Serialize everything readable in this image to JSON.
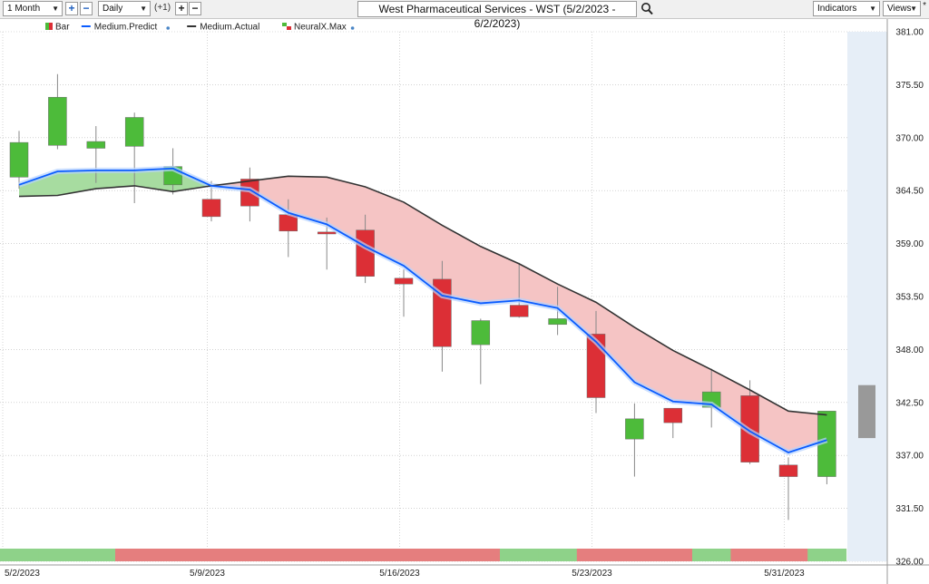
{
  "toolbar": {
    "period": "1 Month",
    "interval": "Daily",
    "offset": "(+1)",
    "title": "West Pharmaceutical Services - WST (5/2/2023 - 6/2/2023)",
    "indicators": "Indicators",
    "views": "Views",
    "star": "*"
  },
  "colors": {
    "up": "#4dbb3a",
    "down": "#dc2f36",
    "predict": "#0a5cff",
    "actual": "#333333",
    "fill_green": "#a7dca0",
    "fill_red": "#f5c4c4",
    "strip_green": "#8ed289",
    "strip_red": "#e57e7e",
    "forecast_zone": "#e6eef7",
    "forecast_bar": "#999999"
  },
  "chart_data": {
    "type": "candlestick",
    "legend": [
      "Bar",
      "Medium.Predict",
      "Medium.Actual",
      "NeuralX.Max"
    ],
    "x_labels": [
      "5/2/2023",
      "5/9/2023",
      "5/16/2023",
      "5/23/2023",
      "5/31/2023"
    ],
    "x_label_index": [
      0,
      5,
      10,
      15,
      20
    ],
    "y_ticks": [
      "381.00",
      "375.50",
      "370.00",
      "364.50",
      "359.00",
      "353.50",
      "348.00",
      "342.50",
      "337.00",
      "331.50",
      "326.00"
    ],
    "ylim": [
      326,
      381
    ],
    "candles": [
      {
        "o": 365.9,
        "h": 370.7,
        "l": 364.7,
        "c": 369.5
      },
      {
        "o": 369.2,
        "h": 376.6,
        "l": 368.8,
        "c": 374.2
      },
      {
        "o": 368.9,
        "h": 371.2,
        "l": 365.3,
        "c": 369.6
      },
      {
        "o": 369.1,
        "h": 372.6,
        "l": 363.2,
        "c": 372.1
      },
      {
        "o": 365.1,
        "h": 368.9,
        "l": 364.1,
        "c": 367.0
      },
      {
        "o": 363.6,
        "h": 365.5,
        "l": 361.3,
        "c": 361.8
      },
      {
        "o": 365.7,
        "h": 366.9,
        "l": 361.3,
        "c": 362.9
      },
      {
        "o": 362.0,
        "h": 363.6,
        "l": 357.6,
        "c": 360.3
      },
      {
        "o": 360.2,
        "h": 361.7,
        "l": 356.3,
        "c": 360.0
      },
      {
        "o": 360.4,
        "h": 362.0,
        "l": 354.9,
        "c": 355.6
      },
      {
        "o": 355.4,
        "h": 356.3,
        "l": 351.4,
        "c": 354.8
      },
      {
        "o": 355.3,
        "h": 357.2,
        "l": 345.7,
        "c": 348.3
      },
      {
        "o": 348.5,
        "h": 351.2,
        "l": 344.4,
        "c": 351.0
      },
      {
        "o": 352.6,
        "h": 357.0,
        "l": 351.3,
        "c": 351.4
      },
      {
        "o": 350.6,
        "h": 354.5,
        "l": 349.5,
        "c": 351.2
      },
      {
        "o": 349.6,
        "h": 352.0,
        "l": 341.4,
        "c": 343.0
      },
      {
        "o": 338.7,
        "h": 342.4,
        "l": 334.8,
        "c": 340.8
      },
      {
        "o": 341.9,
        "h": 341.9,
        "l": 338.8,
        "c": 340.4
      },
      {
        "o": 342.0,
        "h": 346.0,
        "l": 339.9,
        "c": 343.6
      },
      {
        "o": 343.2,
        "h": 344.8,
        "l": 336.1,
        "c": 336.3
      },
      {
        "o": 336.0,
        "h": 336.8,
        "l": 330.3,
        "c": 334.8
      },
      {
        "o": 334.8,
        "h": 341.6,
        "l": 334.0,
        "c": 341.6
      }
    ],
    "medium_predict": [
      365.1,
      366.5,
      366.6,
      366.6,
      366.8,
      365.0,
      364.6,
      362.2,
      361.0,
      358.7,
      356.7,
      353.6,
      352.8,
      353.1,
      352.3,
      348.8,
      344.6,
      342.6,
      342.3,
      339.5,
      337.3,
      338.6
    ],
    "medium_actual": [
      363.9,
      364.0,
      364.7,
      365.0,
      364.4,
      365.0,
      365.5,
      366.0,
      365.9,
      364.9,
      363.3,
      360.9,
      358.7,
      356.9,
      354.8,
      352.9,
      350.3,
      347.9,
      345.9,
      343.8,
      341.6,
      341.2
    ],
    "forecast_bar": {
      "high": 344.3,
      "low": 338.8
    },
    "neuralx_max": [
      "up",
      "up",
      "up",
      "red",
      "red",
      "red",
      "red",
      "red",
      "red",
      "red",
      "red",
      "red",
      "red",
      "up",
      "up",
      "red",
      "red",
      "red",
      "up",
      "red",
      "red",
      "up"
    ]
  }
}
